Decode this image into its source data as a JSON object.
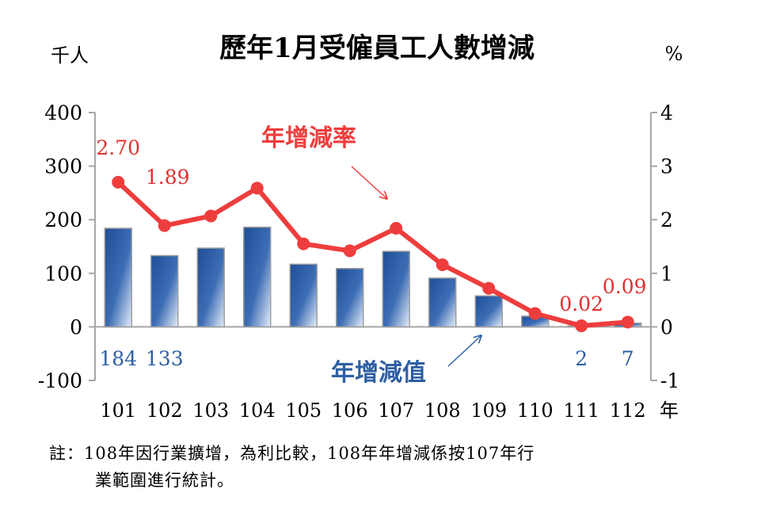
{
  "chart_data": {
    "type": "bar+line",
    "title": "歷年1月受僱員工人數增減",
    "left_unit": "千人",
    "right_unit": "%",
    "x_unit": "年",
    "categories": [
      "101",
      "102",
      "103",
      "104",
      "105",
      "106",
      "107",
      "108",
      "109",
      "110",
      "111",
      "112"
    ],
    "left_axis": {
      "ylim": [
        -100,
        400
      ],
      "ticks": [
        "-100",
        "0",
        "100",
        "200",
        "300",
        "400"
      ]
    },
    "right_axis": {
      "ylim": [
        -1,
        4
      ],
      "ticks": [
        "-1",
        "0",
        "1",
        "2",
        "3",
        "4"
      ]
    },
    "series": [
      {
        "name": "年增減值",
        "kind": "bar",
        "axis": "left",
        "values": [
          184,
          133,
          147,
          186,
          117,
          109,
          141,
          91,
          58,
          20,
          2,
          7
        ],
        "labels": [
          "184",
          "133",
          "",
          "",
          "",
          "",
          "",
          "",
          "",
          "",
          "2",
          "7"
        ]
      },
      {
        "name": "年增減率",
        "kind": "line",
        "axis": "right",
        "values": [
          2.7,
          1.89,
          2.07,
          2.59,
          1.55,
          1.42,
          1.84,
          1.16,
          0.72,
          0.25,
          0.02,
          0.09
        ],
        "labels": [
          "2.70",
          "1.89",
          "",
          "",
          "",
          "",
          "",
          "",
          "",
          "",
          "0.02",
          "0.09"
        ]
      }
    ],
    "colors": {
      "bar": "#2b5aa0",
      "bar_light": "#dbe6f5",
      "line": "#ee3d3d",
      "axis": "#a6a6a6"
    }
  },
  "note": {
    "line1": "註：108年因行業擴增，為利比較，108年年增減係按107年行",
    "line2": "業範圍進行統計。"
  }
}
